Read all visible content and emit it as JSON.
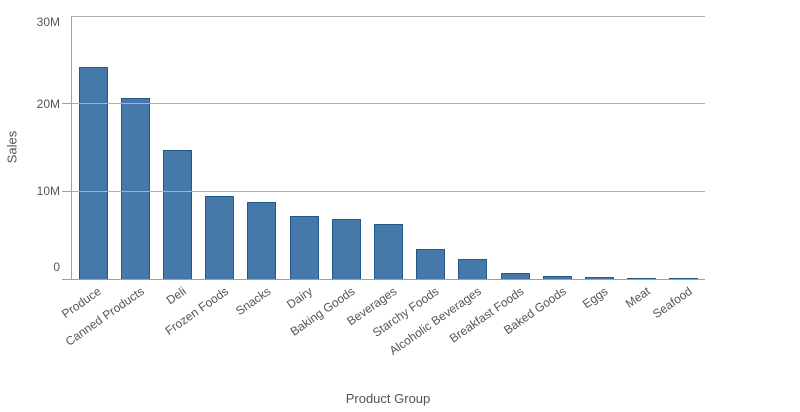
{
  "chart_data": {
    "type": "bar",
    "title": "",
    "xlabel": "Product Group",
    "ylabel": "Sales",
    "unit": "millions",
    "categories": [
      "Produce",
      "Canned Products",
      "Deli",
      "Frozen Foods",
      "Snacks",
      "Dairy",
      "Baking Goods",
      "Beverages",
      "Starchy Foods",
      "Alcoholic Beverages",
      "Breakfast Foods",
      "Baked Goods",
      "Eggs",
      "Meat",
      "Seafood"
    ],
    "values": [
      24.2,
      20.6,
      14.7,
      9.5,
      8.8,
      7.2,
      6.8,
      6.3,
      3.4,
      2.3,
      0.7,
      0.35,
      0.25,
      0.15,
      0.05
    ],
    "ylim": [
      0,
      30
    ],
    "yticks": [
      {
        "label": "0",
        "value": 0
      },
      {
        "label": "10M",
        "value": 10
      },
      {
        "label": "20M",
        "value": 20
      },
      {
        "label": "30M",
        "value": 30
      }
    ],
    "grid": "horizontal",
    "legend": "none",
    "colors": {
      "bar_fill": "#4678a9",
      "bar_border": "#205a8d",
      "gridline": "#b0b0b0",
      "axis_line": "#a0a0a0",
      "label_text": "#555555"
    }
  }
}
